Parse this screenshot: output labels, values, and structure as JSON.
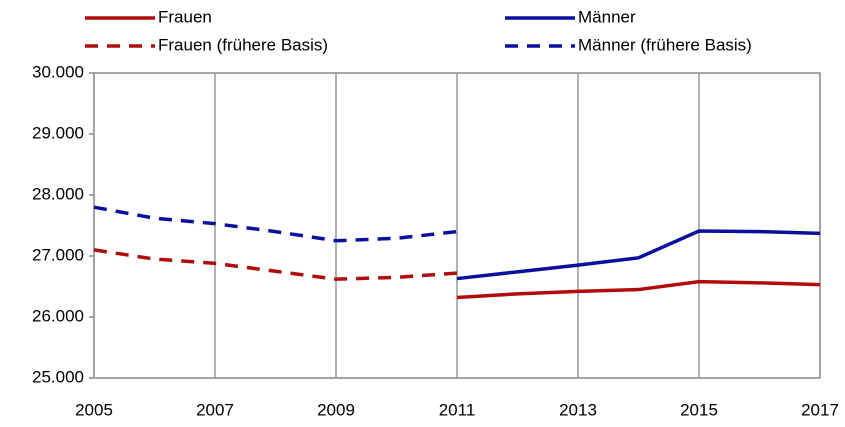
{
  "chart_data": {
    "type": "line",
    "x": [
      2005,
      2006,
      2007,
      2008,
      2009,
      2010,
      2011,
      2012,
      2013,
      2014,
      2015,
      2016,
      2017
    ],
    "series": [
      {
        "name": "Frauen",
        "color": "#b00c0c",
        "dashed": false,
        "values": [
          null,
          null,
          null,
          null,
          null,
          null,
          26320,
          26380,
          26420,
          26450,
          26580,
          26560,
          26530
        ]
      },
      {
        "name": "Männer",
        "color": "#0a0f9e",
        "dashed": false,
        "values": [
          null,
          null,
          null,
          null,
          null,
          null,
          26630,
          26740,
          26850,
          26970,
          27410,
          27400,
          27370
        ]
      },
      {
        "name": "Frauen (frühere Basis)",
        "color": "#b00c0c",
        "dashed": true,
        "values": [
          27100,
          26950,
          26880,
          26750,
          26620,
          26650,
          26720,
          null,
          null,
          null,
          null,
          null,
          null
        ]
      },
      {
        "name": "Männer (frühere Basis)",
        "color": "#0a0f9e",
        "dashed": true,
        "values": [
          27800,
          27620,
          27530,
          27400,
          27250,
          27290,
          27400,
          null,
          null,
          null,
          null,
          null,
          null
        ]
      }
    ],
    "xlim": [
      2005,
      2017
    ],
    "xticks": [
      2005,
      2007,
      2009,
      2011,
      2013,
      2015,
      2017
    ],
    "ylim": [
      25000,
      30000
    ],
    "yticks": [
      {
        "value": 25000,
        "label": "25.000"
      },
      {
        "value": 26000,
        "label": "26.000"
      },
      {
        "value": 27000,
        "label": "27.000"
      },
      {
        "value": 28000,
        "label": "28.000"
      },
      {
        "value": 29000,
        "label": "29.000"
      },
      {
        "value": 30000,
        "label": "30.000"
      }
    ],
    "grid": "x"
  }
}
